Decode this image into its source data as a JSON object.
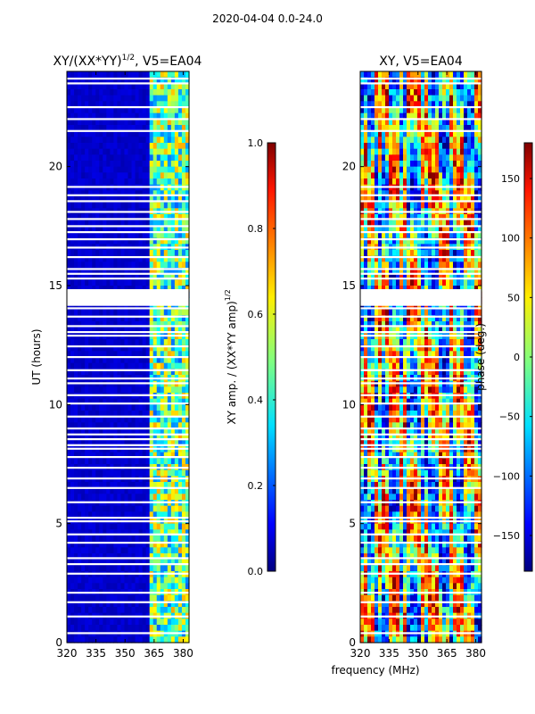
{
  "chart_data": {
    "suptitle": "2020-04-04 0.0-24.0",
    "xlabel": "frequency (MHz)",
    "xlim": [
      320,
      383
    ],
    "ylim": [
      0,
      24
    ],
    "x_ticks": [
      320,
      335,
      350,
      365,
      380
    ],
    "y_ticks": [
      0,
      5,
      10,
      15,
      20
    ],
    "panels": [
      {
        "type": "heatmap",
        "title_main": "XY/(XX*YY)",
        "title_sup": "1/2",
        "title_tail": ", V5=EA04",
        "ylabel": "UT (hours)",
        "colorbar": {
          "label_main": "XY amp. / (XX*YY amp)",
          "label_sup": "1/2",
          "range": [
            0.0,
            1.0
          ],
          "ticks": [
            "0.0",
            "0.2",
            "0.4",
            "0.6",
            "0.8",
            "1.0"
          ],
          "tick_values": [
            0.0,
            0.2,
            0.4,
            0.6,
            0.8,
            1.0
          ]
        },
        "description": "amplitude low (~0.05) below 362 MHz, elevated (0.3-0.7) between 362 and 383 MHz"
      },
      {
        "type": "heatmap",
        "title_main": "XY, V5=EA04",
        "ylabel": "",
        "colorbar": {
          "label_main": "phase (deg.)",
          "range": [
            -180,
            180
          ],
          "ticks": [
            "150",
            "100",
            "50",
            "0",
            "−50",
            "−100",
            "−150"
          ],
          "tick_values": [
            150,
            100,
            50,
            0,
            -50,
            -100,
            -150
          ]
        },
        "description": "phase varies across full -180..180 range with vertical banding"
      }
    ],
    "flagged_hours": [
      0.4,
      1.1,
      1.7,
      2.1,
      2.9,
      3.3,
      3.55,
      4.2,
      4.55,
      5.1,
      5.25,
      5.9,
      6.5,
      6.9,
      7.35,
      7.8,
      8.15,
      8.3,
      8.55,
      8.75,
      9.0,
      9.5,
      10.05,
      10.4,
      10.9,
      11.1,
      11.45,
      12.0,
      12.45,
      12.9,
      13.05,
      13.3,
      13.7,
      14.05,
      14.2,
      14.35,
      14.5,
      14.65,
      14.8,
      15.3,
      15.5,
      15.7,
      16.2,
      16.6,
      16.95,
      17.25,
      17.5,
      17.8,
      18.1,
      18.55,
      18.8,
      19.15,
      21.5,
      22.0,
      22.5,
      23.5,
      23.7
    ]
  }
}
